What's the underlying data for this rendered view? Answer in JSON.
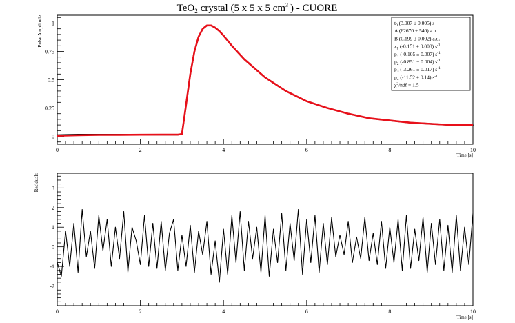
{
  "title": {
    "prefix": "TeO",
    "sub": "2",
    "mid": "crystal (5 x 5 x 5 cm",
    "sup": "3",
    "suffix": ") - CUORE"
  },
  "chart_data": [
    {
      "type": "line",
      "title": "TeO2 crystal (5 x 5 x 5 cm3) - CUORE",
      "xlabel": "Time [s]",
      "ylabel": "Pulse Amplitude",
      "xlim": [
        0,
        10
      ],
      "ylim": [
        -0.07,
        1.07
      ],
      "x_ticks": [
        "0",
        "2",
        "4",
        "6",
        "8",
        "10"
      ],
      "y_ticks": [
        "0",
        "0.25",
        "0.5",
        "0.75",
        "1"
      ],
      "grid": false,
      "legend": "none",
      "series": [
        {
          "role": "data",
          "color": "#000000",
          "x": [
            0,
            0.5,
            1,
            1.5,
            2,
            2.5,
            2.9,
            3.0,
            3.1,
            3.2,
            3.3,
            3.4,
            3.5,
            3.6,
            3.7,
            3.8,
            3.9,
            4.0,
            4.2,
            4.5,
            5.0,
            5.5,
            6.0,
            6.5,
            7.0,
            7.5,
            8.0,
            8.5,
            9.0,
            9.5,
            10.0
          ],
          "y": [
            0.01,
            0.015,
            0.015,
            0.015,
            0.015,
            0.015,
            0.015,
            0.02,
            0.28,
            0.55,
            0.75,
            0.88,
            0.95,
            0.98,
            0.98,
            0.96,
            0.93,
            0.89,
            0.8,
            0.68,
            0.52,
            0.4,
            0.31,
            0.25,
            0.2,
            0.16,
            0.14,
            0.12,
            0.11,
            0.1,
            0.1
          ]
        },
        {
          "role": "fit",
          "color": "#e8101a",
          "x": [
            0,
            0.5,
            1,
            1.5,
            2,
            2.5,
            2.9,
            3.0,
            3.1,
            3.2,
            3.3,
            3.4,
            3.5,
            3.6,
            3.7,
            3.8,
            3.9,
            4.0,
            4.2,
            4.5,
            5.0,
            5.5,
            6.0,
            6.5,
            7.0,
            7.5,
            8.0,
            8.5,
            9.0,
            9.5,
            10.0
          ],
          "y": [
            0.005,
            0.01,
            0.012,
            0.013,
            0.014,
            0.015,
            0.015,
            0.02,
            0.28,
            0.55,
            0.75,
            0.88,
            0.95,
            0.98,
            0.98,
            0.96,
            0.93,
            0.89,
            0.8,
            0.68,
            0.52,
            0.4,
            0.31,
            0.25,
            0.2,
            0.16,
            0.14,
            0.12,
            0.11,
            0.1,
            0.1
          ]
        }
      ],
      "fit_box": [
        {
          "main": "t",
          "sub": "0",
          "rest": " (3.007 ± 0.005) s"
        },
        {
          "main": "A (62670 ± 540) a.u."
        },
        {
          "main": "B (0.199 ± 0.002) a.u."
        },
        {
          "main": "z",
          "sub": "1",
          "rest": " (-0.151 ± 0.008) s",
          "sup": "-1"
        },
        {
          "main": "p",
          "sub": "1",
          "rest": " (-0.105 ± 0.007) s",
          "sup": "-1"
        },
        {
          "main": "p",
          "sub": "2",
          "rest": " (-0.851 ± 0.004) s",
          "sup": "-1"
        },
        {
          "main": "p",
          "sub": "3",
          "rest": " (-3.261 ± 0.017) s",
          "sup": "-1"
        },
        {
          "main": "p",
          "sub": "4",
          "rest": " (-11.52 ± 0.14) s",
          "sup": "-1"
        },
        {
          "main": "χ",
          "sup2": "2",
          "rest": "/ndf = 1.5"
        }
      ]
    },
    {
      "type": "line",
      "xlabel": "Time [s]",
      "ylabel": "Residuals",
      "xlim": [
        0,
        10
      ],
      "ylim": [
        -3,
        3.75
      ],
      "x_ticks": [
        "0",
        "2",
        "4",
        "6",
        "8",
        "10"
      ],
      "y_ticks": [
        "-2",
        "-1",
        "0",
        "1",
        "2",
        "3"
      ],
      "grid": false,
      "legend": "none",
      "series": [
        {
          "role": "residuals",
          "color": "#000000",
          "x": [
            0,
            0.1,
            0.2,
            0.3,
            0.4,
            0.5,
            0.6,
            0.7,
            0.8,
            0.9,
            1.0,
            1.1,
            1.2,
            1.3,
            1.4,
            1.5,
            1.6,
            1.7,
            1.8,
            1.9,
            2.0,
            2.1,
            2.2,
            2.3,
            2.4,
            2.5,
            2.6,
            2.7,
            2.8,
            2.9,
            3.0,
            3.1,
            3.2,
            3.3,
            3.4,
            3.5,
            3.6,
            3.7,
            3.8,
            3.9,
            4.0,
            4.1,
            4.2,
            4.3,
            4.4,
            4.5,
            4.6,
            4.7,
            4.8,
            4.9,
            5.0,
            5.1,
            5.2,
            5.3,
            5.4,
            5.5,
            5.6,
            5.7,
            5.8,
            5.9,
            6.0,
            6.1,
            6.2,
            6.3,
            6.4,
            6.5,
            6.6,
            6.7,
            6.8,
            6.9,
            7.0,
            7.1,
            7.2,
            7.3,
            7.4,
            7.5,
            7.6,
            7.7,
            7.8,
            7.9,
            8.0,
            8.1,
            8.2,
            8.3,
            8.4,
            8.5,
            8.6,
            8.7,
            8.8,
            8.9,
            9.0,
            9.1,
            9.2,
            9.3,
            9.4,
            9.5,
            9.6,
            9.7,
            9.8,
            9.9,
            10.0
          ],
          "y": [
            -0.8,
            -1.5,
            0.8,
            -1.0,
            1.2,
            -1.3,
            1.9,
            -0.5,
            0.8,
            -1.1,
            1.6,
            -0.2,
            1.4,
            -1.0,
            1.0,
            -0.6,
            1.8,
            -1.3,
            1.0,
            0.3,
            -0.9,
            1.6,
            -1.0,
            1.2,
            -1.1,
            1.3,
            -1.2,
            0.7,
            1.4,
            -1.2,
            0.6,
            -1.0,
            1.1,
            -1.3,
            0.8,
            -0.4,
            1.3,
            -1.4,
            0.3,
            -1.8,
            0.9,
            -1.4,
            1.6,
            -0.8,
            1.8,
            -1.2,
            1.3,
            -0.6,
            1.0,
            -1.3,
            1.6,
            -1.5,
            0.9,
            -0.8,
            1.7,
            -1.2,
            1.2,
            -0.7,
            1.9,
            -1.4,
            1.4,
            -0.8,
            1.6,
            -1.3,
            1.2,
            -0.9,
            1.5,
            -0.5,
            0.6,
            -0.4,
            1.3,
            -0.8,
            0.5,
            -0.6,
            1.5,
            -0.7,
            0.7,
            -0.9,
            1.3,
            -1.1,
            1.0,
            -0.8,
            1.4,
            -1.2,
            1.6,
            -1.1,
            0.9,
            -0.7,
            1.5,
            -1.3,
            1.2,
            -0.9,
            1.4,
            -1.2,
            1.1,
            -1.3,
            1.6,
            -1.2,
            1.0,
            -0.9,
            1.7
          ]
        }
      ]
    }
  ]
}
